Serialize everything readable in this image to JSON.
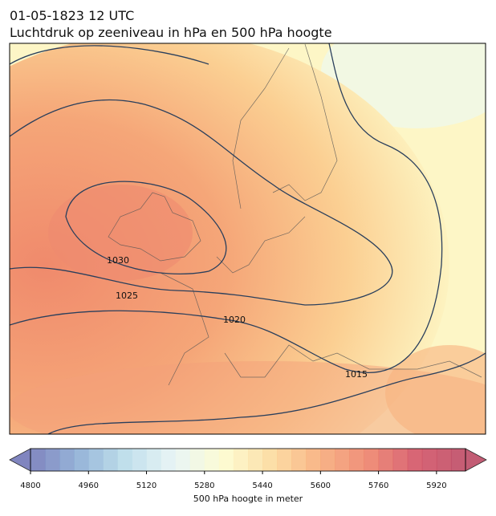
{
  "header": {
    "date": "01-05-1823 12 UTC",
    "title": "Luchtdruk op zeeniveau in hPa en 500 hPa hoogte"
  },
  "isobars": [
    {
      "value": 1030
    },
    {
      "value": 1025
    },
    {
      "value": 1020
    },
    {
      "value": 1015
    }
  ],
  "colorbar": {
    "label": "500 hPa hoogte in meter",
    "range": [
      4800,
      6000
    ],
    "step": 40,
    "ticks": [
      4800,
      4960,
      5120,
      5280,
      5440,
      5600,
      5760,
      5920
    ],
    "colormap": [
      "#6a70b4",
      "#86a9d2",
      "#b7dbe9",
      "#e6f4f3",
      "#fdfbcb",
      "#fcd796",
      "#f7a772",
      "#ec7a62",
      "#d0485d",
      "#b8405c"
    ]
  }
}
